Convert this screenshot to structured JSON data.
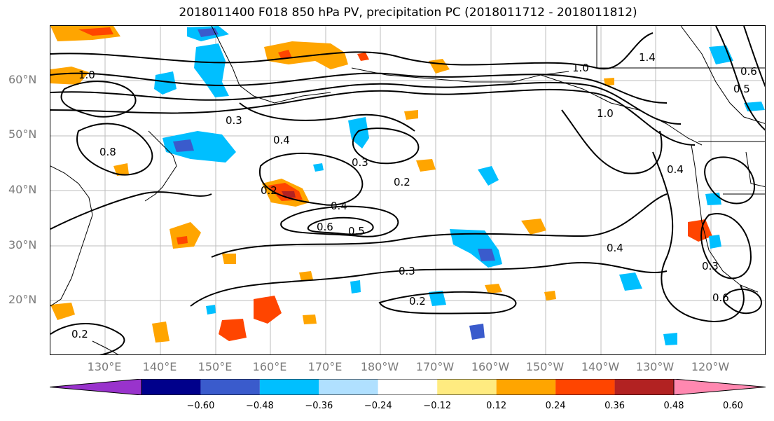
{
  "title": "2018011400 F018 850 hPa PV, precipitation PC (2018011712 - 2018011812)",
  "map": {
    "region": "North Pacific",
    "projection": "equirectangular",
    "lon_range": [
      "120°E",
      "110°W"
    ],
    "lat_range": [
      "10°N",
      "70°N"
    ],
    "gridlines": true,
    "coastlines": true
  },
  "lat_labels": [
    "60°N",
    "50°N",
    "40°N",
    "30°N",
    "20°N"
  ],
  "lon_labels": [
    "130°E",
    "140°E",
    "150°E",
    "160°E",
    "170°E",
    "180°W",
    "170°W",
    "160°W",
    "150°W",
    "140°W",
    "130°W",
    "120°W"
  ],
  "contour_labels": [
    "0.2",
    "0.2",
    "0.2",
    "0.2",
    "0.3",
    "0.3",
    "0.3",
    "0.3",
    "0.4",
    "0.4",
    "0.4",
    "0.4",
    "0.5",
    "0.6",
    "0.6",
    "0.8",
    "1.0",
    "1.0",
    "1.0",
    "1.4",
    "0.5",
    "0.6"
  ],
  "colorbar": {
    "extend": "both",
    "colors": [
      "#9933cc",
      "#00008b",
      "#3a5bcc",
      "#00bfff",
      "#b0e0ff",
      "#ffffff",
      "#ffeb80",
      "#ffa500",
      "#ff4500",
      "#b22222",
      "#ff88b0"
    ],
    "tick_labels": [
      "−0.60",
      "−0.48",
      "−0.36",
      "−0.24",
      "−0.12",
      "0.12",
      "0.24",
      "0.36",
      "0.48",
      "0.60"
    ],
    "levels": [
      -0.6,
      -0.48,
      -0.36,
      -0.24,
      -0.12,
      0.12,
      0.24,
      0.36,
      0.48,
      0.6
    ]
  }
}
